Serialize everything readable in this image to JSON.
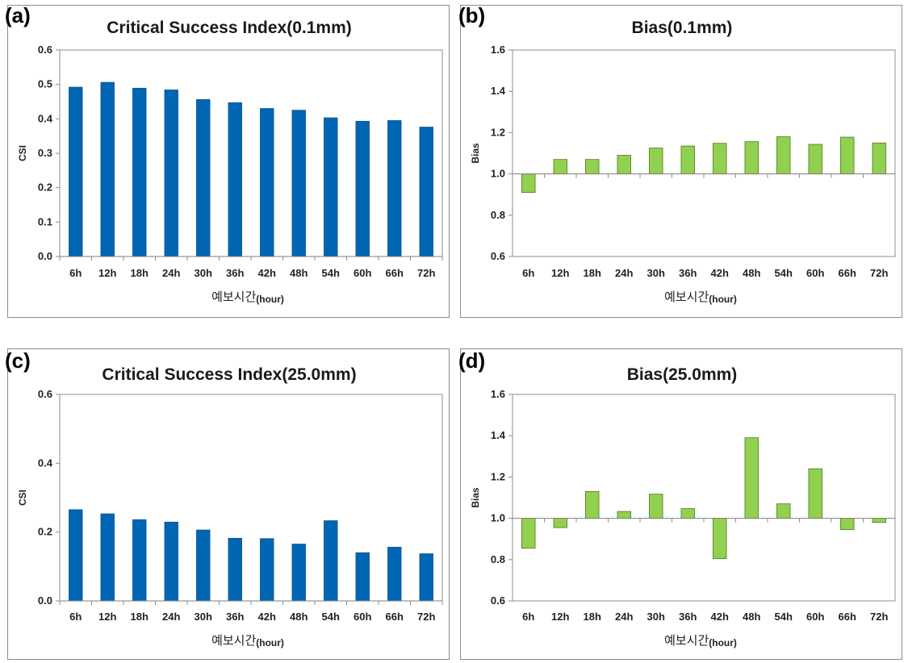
{
  "chart_data": [
    {
      "id": "a",
      "panel_letter": "(a)",
      "type": "bar",
      "title": "Critical Success Index(0.1mm)",
      "xlabel": "예보시간",
      "xlabel_unit": "(hour)",
      "ylabel": "CSI",
      "categories": [
        "6h",
        "12h",
        "18h",
        "24h",
        "30h",
        "36h",
        "42h",
        "48h",
        "54h",
        "60h",
        "66h",
        "72h"
      ],
      "values": [
        0.492,
        0.506,
        0.489,
        0.484,
        0.456,
        0.447,
        0.43,
        0.425,
        0.403,
        0.393,
        0.395,
        0.376
      ],
      "ylim": [
        0.0,
        0.6
      ],
      "yticks": [
        "0.0",
        "0.1",
        "0.2",
        "0.3",
        "0.4",
        "0.5",
        "0.6"
      ],
      "baseline": 0.0,
      "color": "#0066b3",
      "grid": false
    },
    {
      "id": "b",
      "panel_letter": "(b)",
      "type": "bar",
      "title": "Bias(0.1mm)",
      "xlabel": "예보시간",
      "xlabel_unit": "(hour)",
      "ylabel": "Bias",
      "categories": [
        "6h",
        "12h",
        "18h",
        "24h",
        "30h",
        "36h",
        "42h",
        "48h",
        "54h",
        "60h",
        "66h",
        "72h"
      ],
      "values": [
        0.91,
        1.07,
        1.07,
        1.09,
        1.125,
        1.135,
        1.148,
        1.156,
        1.18,
        1.143,
        1.178,
        1.15
      ],
      "ylim": [
        0.6,
        1.6
      ],
      "yticks": [
        "0.6",
        "0.8",
        "1.0",
        "1.2",
        "1.4",
        "1.6"
      ],
      "baseline": 1.0,
      "color": "#92d050",
      "grid": false
    },
    {
      "id": "c",
      "panel_letter": "(c)",
      "type": "bar",
      "title": "Critical Success Index(25.0mm)",
      "xlabel": "예보시간",
      "xlabel_unit": "(hour)",
      "ylabel": "CSI",
      "categories": [
        "6h",
        "12h",
        "18h",
        "24h",
        "30h",
        "36h",
        "42h",
        "48h",
        "54h",
        "60h",
        "66h",
        "72h"
      ],
      "values": [
        0.265,
        0.253,
        0.236,
        0.229,
        0.206,
        0.182,
        0.181,
        0.165,
        0.233,
        0.14,
        0.156,
        0.137
      ],
      "ylim": [
        0.0,
        0.6
      ],
      "yticks": [
        "0.0",
        "0.2",
        "0.4",
        "0.6"
      ],
      "baseline": 0.0,
      "color": "#0066b3",
      "grid": false
    },
    {
      "id": "d",
      "panel_letter": "(d)",
      "type": "bar",
      "title": "Bias(25.0mm)",
      "xlabel": "예보시간",
      "xlabel_unit": "(hour)",
      "ylabel": "Bias",
      "categories": [
        "6h",
        "12h",
        "18h",
        "24h",
        "30h",
        "36h",
        "42h",
        "48h",
        "54h",
        "60h",
        "66h",
        "72h"
      ],
      "values": [
        0.855,
        0.955,
        1.13,
        1.033,
        1.117,
        1.047,
        0.805,
        1.39,
        1.07,
        1.24,
        0.945,
        0.98
      ],
      "ylim": [
        0.6,
        1.6
      ],
      "yticks": [
        "0.6",
        "0.8",
        "1.0",
        "1.2",
        "1.4",
        "1.6"
      ],
      "baseline": 1.0,
      "color": "#92d050",
      "grid": false
    }
  ]
}
